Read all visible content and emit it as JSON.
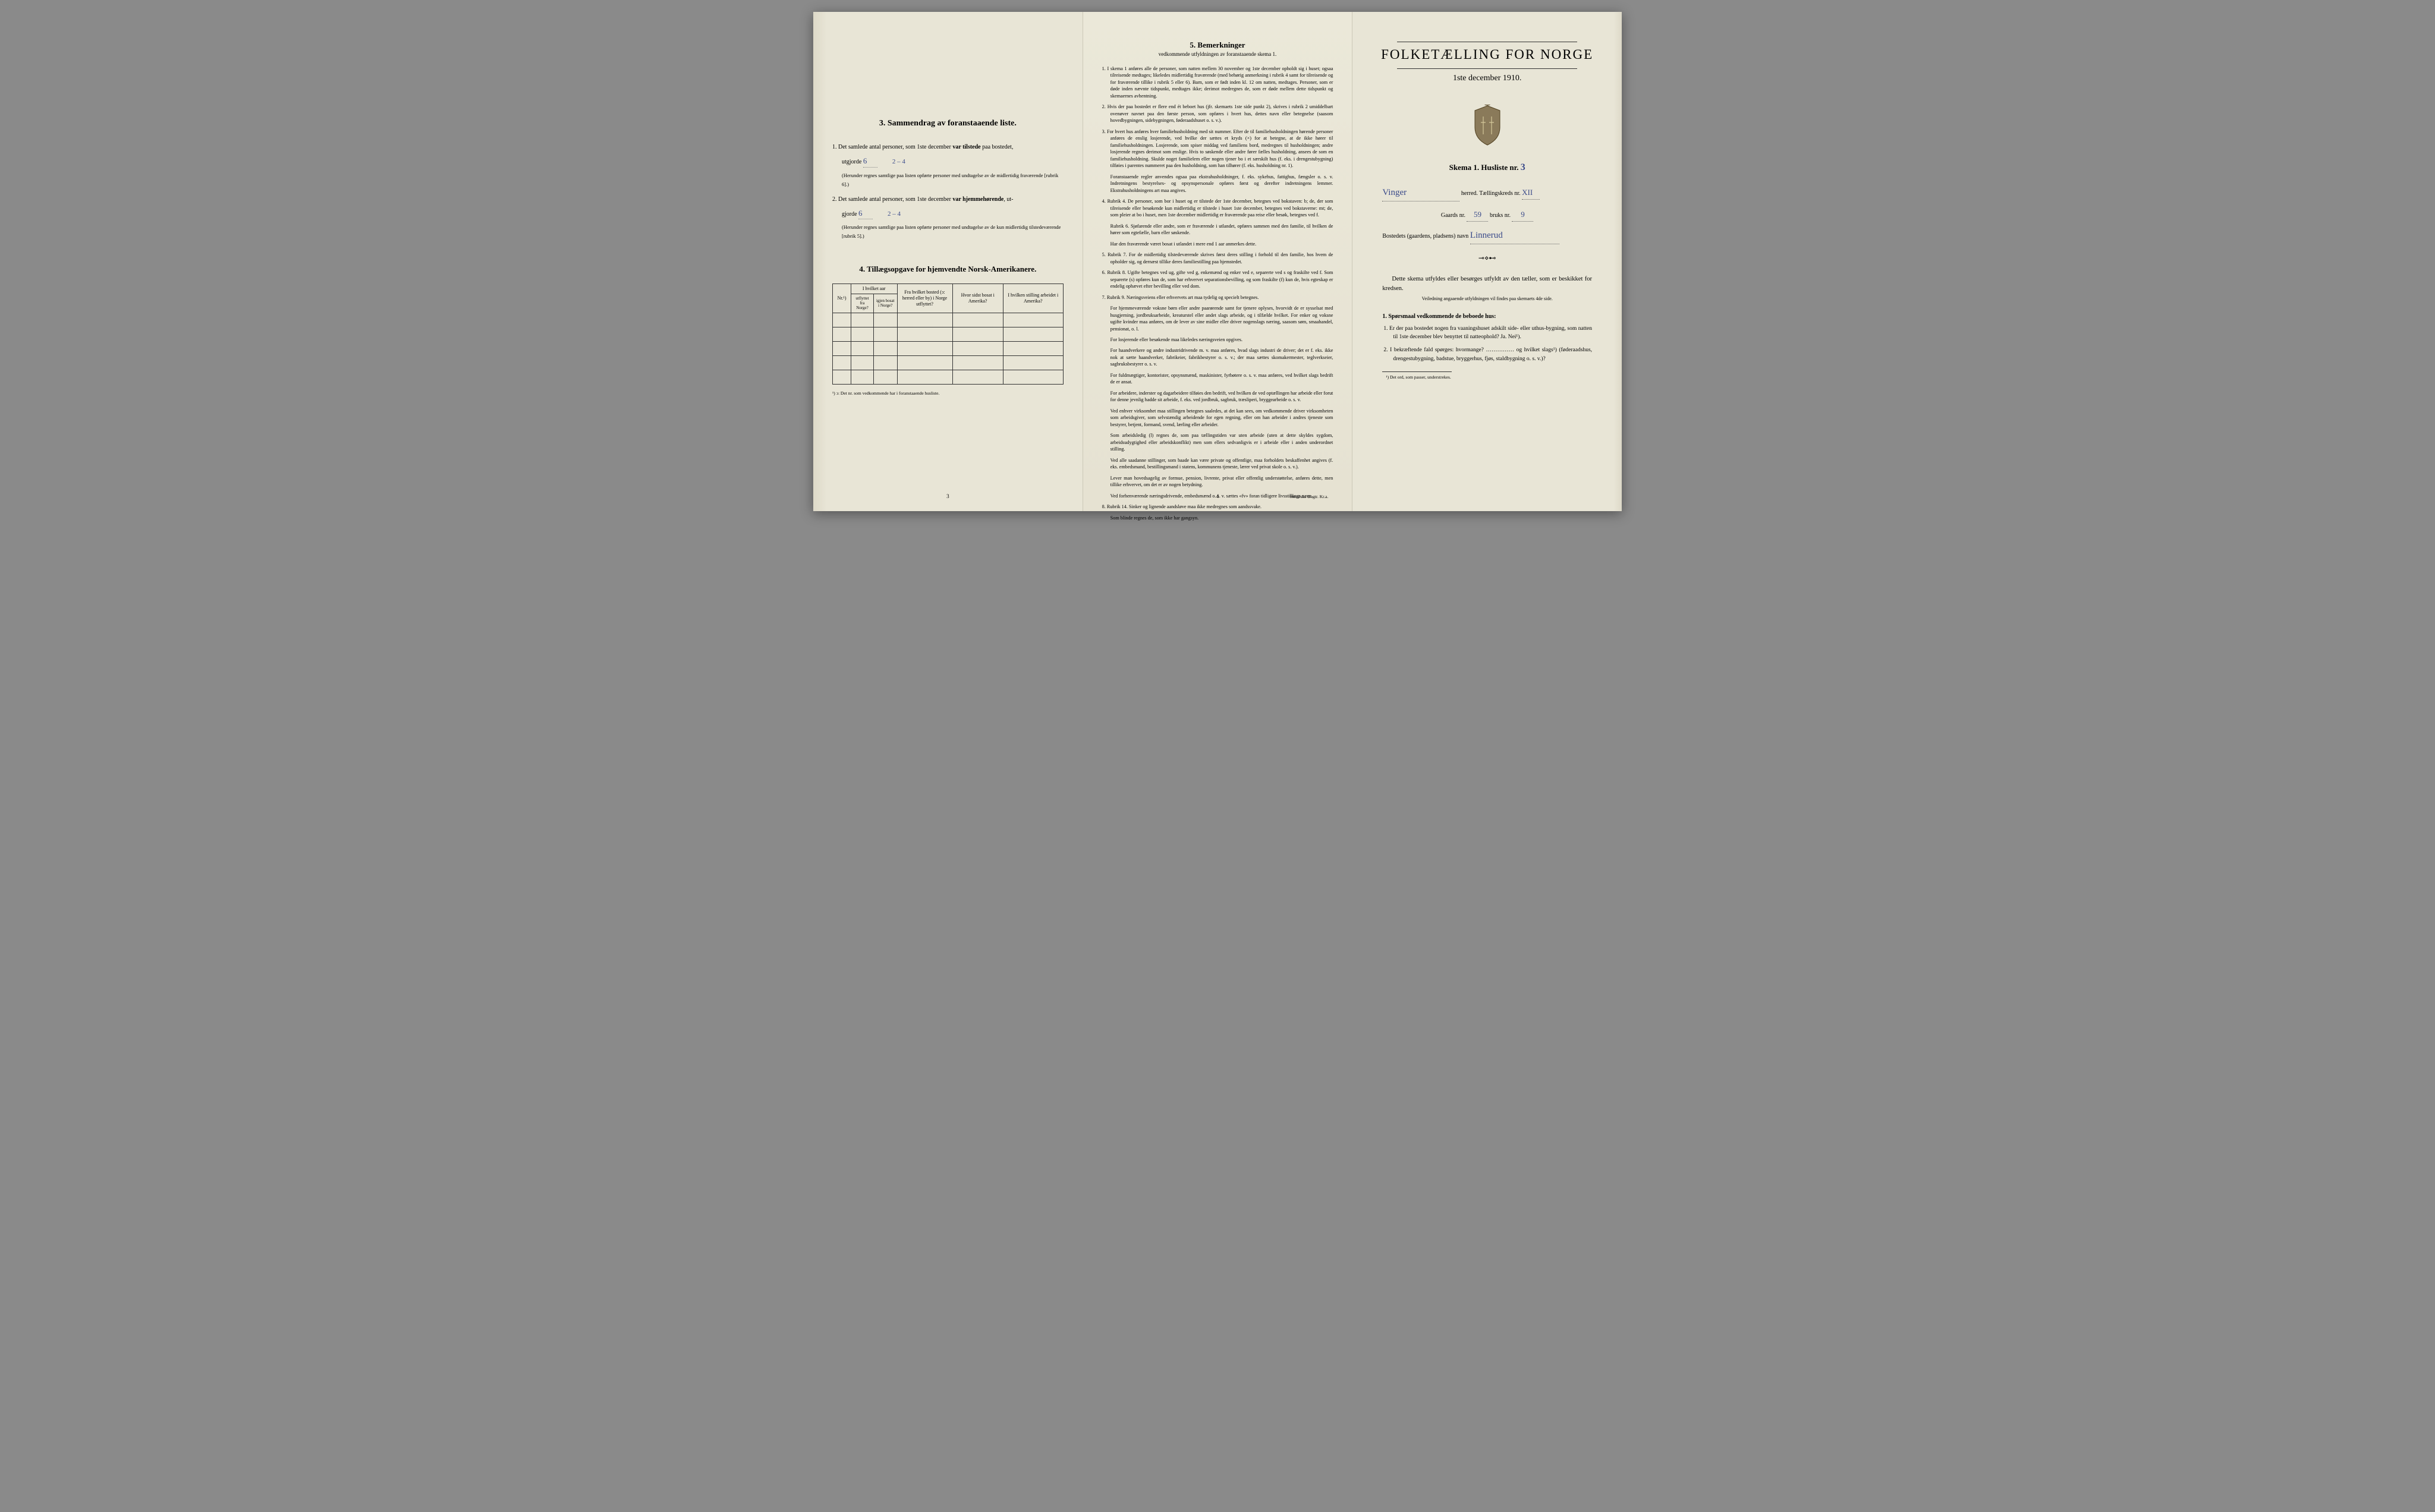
{
  "panel1": {
    "sec3": {
      "heading": "3.   Sammendrag av foranstaaende liste.",
      "item1_pre": "1.  Det samlede antal personer, som 1ste december ",
      "item1_bold": "var tilstede",
      "item1_post": " paa bostedet,",
      "item1_ut": "utgjorde",
      "item1_val": "6",
      "item1_val2": "2 – 4",
      "item1_note": "(Herunder regnes samtlige paa listen opførte personer med undtagelse av de midlertidig fraværende [rubrik 6].)",
      "item2_pre": "2.  Det samlede antal personer, som 1ste december ",
      "item2_bold": "var hjemmehørende",
      "item2_post": ", ut-",
      "item2_gj": "gjorde",
      "item2_val": "6",
      "item2_val2": "2 – 4",
      "item2_note": "(Herunder regnes samtlige paa listen opførte personer med undtagelse av de kun midlertidig tilstedeværende [rubrik 5].)"
    },
    "sec4": {
      "heading": "4.  Tillægsopgave for hjemvendte Norsk-Amerikanere.",
      "th_nr": "Nr.¹)",
      "th_aar": "I hvilket aar",
      "th_ut": "utflyttet fra Norge?",
      "th_igjen": "igjen bosat i Norge?",
      "th_bosted": "Fra hvilket bosted (ↄ: herred eller by) i Norge utflyttet?",
      "th_sidst": "Hvor sidst bosat i Amerika?",
      "th_stilling": "I hvilken stilling arbeidet i Amerika?",
      "footnote": "¹) ↄ: Det nr. som vedkommende har i foranstaaende husliste."
    },
    "page_num": "3"
  },
  "panel2": {
    "heading": "5.   Bemerkninger",
    "sub": "vedkommende utfyldningen av foranstaaende skema 1.",
    "items": [
      "1.  I skema 1 anføres alle de personer, som natten mellem 30 november og 1ste december opholdt sig i huset; ogsaa tilreisende medtages; likeledes midlertidig fraværende (med behørig anmerkning i rubrik 4 samt for tilreisende og for fraværende tillike i rubrik 5 eller 6). Barn, som er født inden kl. 12 om natten, medtages. Personer, som er døde inden nævnte tidspunkt, medtages ikke; derimot medregnes de, som er døde mellem dette tidspunkt og skemaernes avhentning.",
      "2.  Hvis der paa bostedet er flere end ét beboet hus (jfr. skemaets 1ste side punkt 2), skrives i rubrik 2 umiddelbart ovenøver navnet paa den første person, som opføres i hvert hus, dettes navn eller betegnelse (saasom hovedbygningen, sidebygningen, føderaadshuset o. s. v.).",
      "3.  For hvert hus anføres hver familiehusholdning med sit nummer. Efter de til familiehusholdningen hørende personer anføres de enslig losjerende, ved hvilke der sættes et kryds (×) for at betegne, at de ikke hører til familiehusholdningen. Losjerende, som spiser middag ved familiens bord, medregnes til husholdningen; andre losjerende regnes derimot som enslige. Hvis to søskende eller andre fører fælles husholdning, ansees de som en familiehusholdning. Skulde noget familielem eller nogen tjener bo i et særskilt hus (f. eks. i drengestubygning) tilføies i parentes nummeret paa den husholdning, som han tilhører (f. eks. husholdning nr. 1).",
      "    Foranstaaende regler anvendes ogsaa paa ekstrahusholdninger, f. eks. sykehus, fattighus, fængsler o. s. v. Indretningens bestyrelses- og opsynspersonale opføres først og derefter indretningens lemmer. Ekstrahusholdningens art maa angives.",
      "4.  Rubrik 4. De personer, som bor i huset og er tilstede der 1ste december, betegnes ved bokstaven: b; de, der som tilreisende eller besøkende kun midlertidig er tilstede i huset 1ste december, betegnes ved bokstaverne: mt; de, som pleier at bo i huset, men 1ste december midlertidig er fraværende paa reise eller besøk, betegnes ved f.",
      "    Rubrik 6. Sjøfarende eller andre, som er fraværende i utlandet, opføres sammen med den familie, til hvilken de hører som egtefælle, barn eller søskende.",
      "    Har den fraværende været bosat i utlandet i mere end 1 aar anmerkes dette.",
      "5.  Rubrik 7. For de midlertidig tilstedeværende skrives først deres stilling i forhold til den familie, hos hvem de opholder sig, og dernæst tillike deres familiestilling paa hjemstedet.",
      "6.  Rubrik 8. Ugifte betegnes ved ug, gifte ved g, enkemænd og enker ved e, separerte ved s og fraskilte ved f. Som separerte (s) opføres kun de, som har erhvervet separationsbevilling, og som fraskilte (f) kun de, hvis egteskap er endelig ophævet efter bevilling eller ved dom.",
      "7.  Rubrik 9. Næringsveiens eller erhvervets art maa tydelig og specielt betegnes.",
      "    For hjemmeværende voksne børn eller andre paarørende samt for tjenere oplyses, hvorvidt de er sysselsat med husgjerning, jordbruksarbeide, kreaturstel eller andet slags arbeide, og i tilfælde hvilket. For enker og voksne ugifte kvinder maa anføres, om de lever av sine midler eller driver nogenslags næring, saasom søm, smaahandel, pensionat, o. l.",
      "    For losjerende eller besøkende maa likeledes næringsveien opgives.",
      "    For haandverkere og andre industridrivende m. v. maa anføres, hvad slags industri de driver; det er f. eks. ikke nok at sætte haandverker, fabrikeier, fabrikbestyrer o. s. v.; der maa sættes skomakermester, teglverkseier, sagbruksbestyrer o. s. v.",
      "    For fuldmægtiger, kontorister, opsynsmænd, maskinister, fyrbøtere o. s. v. maa anføres, ved hvilket slags bedrift de er ansat.",
      "    For arbeidere, inderster og dagarbeidere tilføies den bedrift, ved hvilken de ved optællingen har arbeide eller forut for denne jevnlig hadde sit arbeide, f. eks. ved jordbruk, sagbruk, træsliperi, bryggearbeide o. s. v.",
      "    Ved enhver virksomhet maa stillingen betegnes saaledes, at det kan sees, om vedkommende driver virksomheten som arbeidsgiver, som selvstændig arbeidende for egen regning, eller om han arbeider i andres tjeneste som bestyrer, betjent, formand, svend, lærling eller arbeider.",
      "    Som arbeidsledig (l) regnes de, som paa tællingstiden var uten arbeide (uten at dette skyldes sygdom, arbeidsudygtighed eller arbeidskonflikt) men som ellers sedvanligvis er i arbeide eller i anden underordnet stilling.",
      "    Ved alle saadanne stillinger, som baade kan være private og offentlige, maa forholdets beskaffenhet angives (f. eks. embedsmand, bestillingsmand i statens, kommunens tjeneste, lærer ved privat skole o. s. v.).",
      "    Lever man hovedsagelig av formue, pension, livrente, privat eller offentlig understøttelse, anføres dette, men tillike erhvervet, om det er av nogen betydning.",
      "    Ved forhenværende næringsdrivende, embedsmænd o. s. v. sættes «fv» foran tidligere livsstillings navn.",
      "8.  Rubrik 14. Sinker og lignende aandsløve maa ikke medregnes som aandssvake.",
      "    Som blinde regnes de, som ikke har gangsyn."
    ],
    "page_num": "4",
    "printer": "Steen'ske Bogtr.  Kr.a."
  },
  "panel3": {
    "title": "FOLKETÆLLING FOR NORGE",
    "date": "1ste december 1910.",
    "skema": "Skema 1. Husliste nr.",
    "skema_val": "3",
    "line1_val": "Vinger",
    "line1_herred": "herred.  Tællingskreds nr.",
    "line1_kreds": "XII",
    "line2_pre": "Gaards nr.",
    "line2_gaard": "59",
    "line2_mid": "bruks nr.",
    "line2_bruk": "9",
    "line3_pre": "Bostedets (gaardens, pladsens) navn",
    "line3_val": "Linnerud",
    "instr1": "Dette skema utfyldes eller besørges utfyldt av den tæller, som er beskikket for kredsen.",
    "instr2": "Veiledning angaaende utfyldningen vil findes paa skemaets 4de side.",
    "q_head": "1. Spørsmaal vedkommende de beboede hus:",
    "q1": "1. Er der paa bostedet nogen fra vaaningshuset adskilt side- eller uthus-bygning, som natten til 1ste december blev benyttet til natteophold?  Ja.  Nei¹).",
    "q2": "2. I bekræftende fald spørges: hvormange? …………… og hvilket slags¹) (føderaadshus, drengestubygning, badstue, bryggerhus, fjøs, staldbygning o. s. v.)?",
    "footnote": "¹) Det ord, som passer, understrekes."
  }
}
